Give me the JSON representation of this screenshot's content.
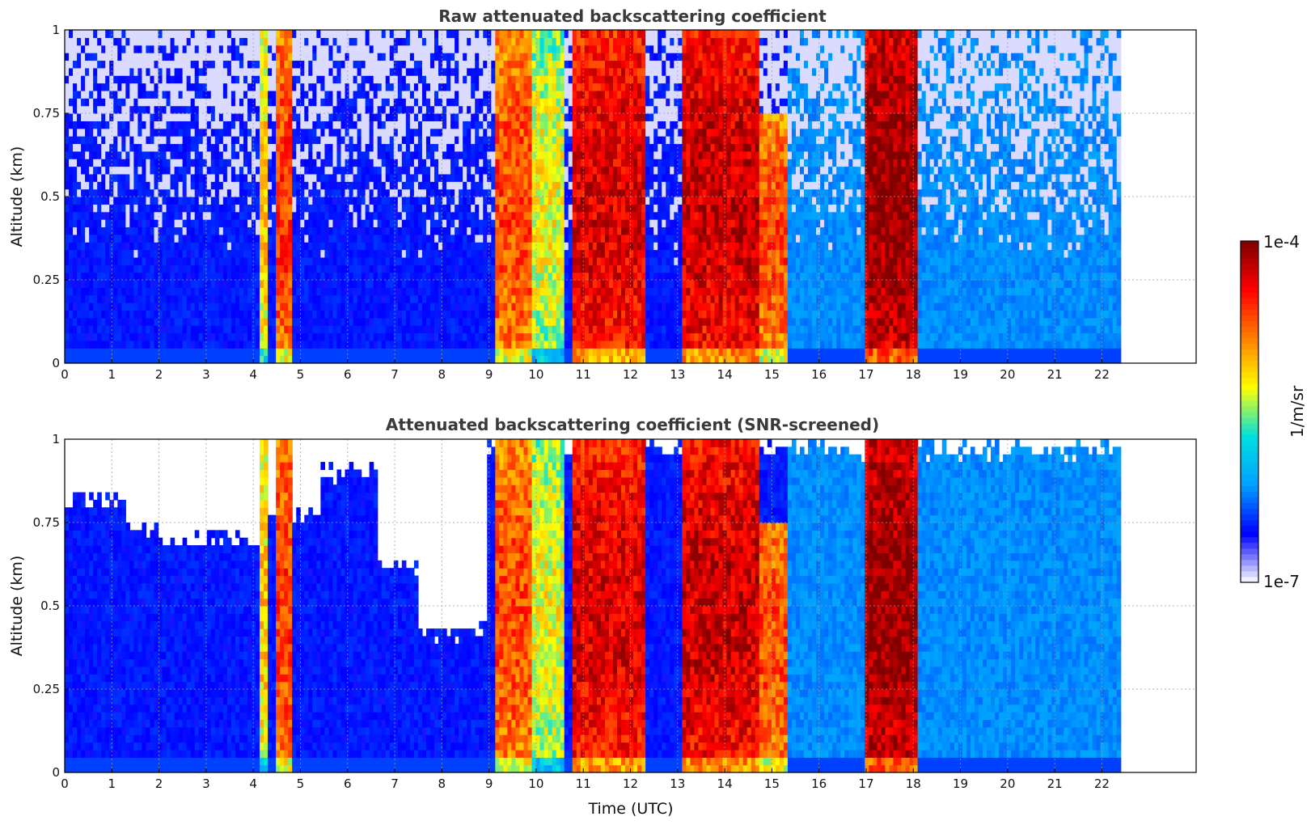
{
  "chart_data": [
    {
      "type": "heatmap",
      "title": "Raw attenuated backscattering coefficient",
      "xlabel": "",
      "ylabel": "Altitude (km)",
      "xlim": [
        0,
        24
      ],
      "ylim": [
        0,
        1
      ],
      "x_ticks": [
        "0",
        "1",
        "2",
        "3",
        "4",
        "5",
        "6",
        "7",
        "8",
        "9",
        "10",
        "11",
        "12",
        "13",
        "14",
        "15",
        "16",
        "17",
        "18",
        "19",
        "20",
        "21",
        "22"
      ],
      "y_ticks": [
        "0",
        "0.25",
        "0.5",
        "0.75",
        "1"
      ],
      "grid": true,
      "data_extent_hours": [
        0,
        22.4
      ],
      "screened": false,
      "features": [
        {
          "t0": 4.15,
          "t1": 4.35,
          "intensity": 0.55,
          "top": 1.0,
          "name": "rain streak"
        },
        {
          "t0": 4.5,
          "t1": 4.8,
          "intensity": 0.72,
          "top": 1.0,
          "name": "rain streak"
        },
        {
          "t0": 9.1,
          "t1": 9.9,
          "intensity": 0.7,
          "top": 1.0,
          "name": "precipitation"
        },
        {
          "t0": 9.9,
          "t1": 10.6,
          "intensity": 0.5,
          "top": 1.0,
          "name": "precipitation"
        },
        {
          "t0": 10.8,
          "t1": 12.3,
          "intensity": 0.82,
          "top": 1.0,
          "name": "precipitation"
        },
        {
          "t0": 13.1,
          "t1": 14.7,
          "intensity": 0.84,
          "top": 1.0,
          "name": "precipitation"
        },
        {
          "t0": 14.7,
          "t1": 15.3,
          "intensity": 0.7,
          "top": 0.75,
          "name": "precipitation"
        },
        {
          "t0": 17.0,
          "t1": 18.1,
          "intensity": 0.9,
          "top": 1.0,
          "name": "precipitation"
        }
      ]
    },
    {
      "type": "heatmap",
      "title": "Attenuated backscattering coefficient (SNR-screened)",
      "xlabel": "Time (UTC)",
      "ylabel": "Altitude (km)",
      "xlim": [
        0,
        24
      ],
      "ylim": [
        0,
        1
      ],
      "x_ticks": [
        "0",
        "1",
        "2",
        "3",
        "4",
        "5",
        "6",
        "7",
        "8",
        "9",
        "10",
        "11",
        "12",
        "13",
        "14",
        "15",
        "16",
        "17",
        "18",
        "19",
        "20",
        "21",
        "22"
      ],
      "y_ticks": [
        "0",
        "0.25",
        "0.5",
        "0.75",
        "1"
      ],
      "grid": true,
      "data_extent_hours": [
        0,
        22.4
      ],
      "screened": true,
      "features": [
        {
          "t0": 4.15,
          "t1": 4.35,
          "intensity": 0.55,
          "top": 1.0,
          "name": "rain streak"
        },
        {
          "t0": 4.5,
          "t1": 4.8,
          "intensity": 0.72,
          "top": 1.0,
          "name": "rain streak"
        },
        {
          "t0": 9.1,
          "t1": 9.9,
          "intensity": 0.7,
          "top": 1.0,
          "name": "precipitation"
        },
        {
          "t0": 9.9,
          "t1": 10.6,
          "intensity": 0.5,
          "top": 1.0,
          "name": "precipitation"
        },
        {
          "t0": 10.8,
          "t1": 12.3,
          "intensity": 0.82,
          "top": 1.0,
          "name": "precipitation"
        },
        {
          "t0": 13.1,
          "t1": 14.7,
          "intensity": 0.84,
          "top": 1.0,
          "name": "precipitation"
        },
        {
          "t0": 14.7,
          "t1": 15.3,
          "intensity": 0.7,
          "top": 0.75,
          "name": "precipitation"
        },
        {
          "t0": 17.0,
          "t1": 18.1,
          "intensity": 0.9,
          "top": 1.0,
          "name": "precipitation"
        }
      ]
    }
  ],
  "colorbar": {
    "label": "1/m/sr",
    "min_label": "1e-7",
    "max_label": "1e-4",
    "scale": "log",
    "range": [
      1e-07,
      0.0001
    ],
    "colormap": [
      "#ffffff",
      "#0000ff",
      "#00a0ff",
      "#00e0e0",
      "#ffff00",
      "#ff8000",
      "#ff0000",
      "#800000"
    ]
  }
}
